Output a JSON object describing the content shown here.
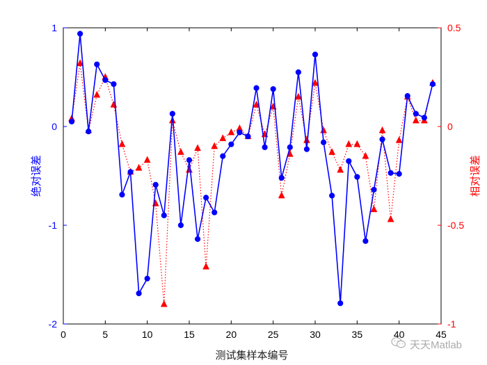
{
  "chart_data": {
    "type": "line",
    "xlabel": "测试集样本编号",
    "x": [
      1,
      2,
      3,
      4,
      5,
      6,
      7,
      8,
      9,
      10,
      11,
      12,
      13,
      14,
      15,
      16,
      17,
      18,
      19,
      20,
      21,
      22,
      23,
      24,
      25,
      26,
      27,
      28,
      29,
      30,
      31,
      32,
      33,
      34,
      35,
      36,
      37,
      38,
      39,
      40,
      41,
      42,
      43,
      44
    ],
    "xlim": [
      0,
      45
    ],
    "xticks": [
      "0",
      "5",
      "10",
      "15",
      "20",
      "25",
      "30",
      "35",
      "40",
      "45"
    ],
    "left_axis": {
      "label": "绝对误差",
      "color": "#0000ff",
      "ylim": [
        -2,
        1
      ],
      "ticks": [
        "-2",
        "-1",
        "0",
        "1"
      ]
    },
    "right_axis": {
      "label": "相对误差",
      "color": "#ff0000",
      "ylim": [
        -1,
        0.5
      ],
      "ticks": [
        "-1",
        "-0.5",
        "0",
        "0.5"
      ]
    },
    "series": [
      {
        "axis": "left",
        "color": "#0000ff",
        "line_style": "solid",
        "marker": "circle",
        "values": [
          0.05,
          0.94,
          -0.05,
          0.63,
          0.47,
          0.43,
          -0.69,
          -0.46,
          -1.69,
          -1.54,
          -0.59,
          -0.9,
          0.13,
          -1.0,
          -0.34,
          -1.14,
          -0.72,
          -0.87,
          -0.3,
          -0.18,
          -0.06,
          -0.1,
          0.39,
          -0.21,
          0.38,
          -0.52,
          -0.21,
          0.55,
          -0.23,
          0.73,
          -0.16,
          -0.7,
          -1.79,
          -0.35,
          -0.51,
          -1.16,
          -0.64,
          -0.13,
          -0.47,
          -0.48,
          0.31,
          0.13,
          0.09,
          0.43
        ]
      },
      {
        "axis": "right",
        "color": "#ff0000",
        "line_style": "dotted",
        "marker": "triangle",
        "values": [
          0.04,
          0.32,
          -0.02,
          0.16,
          0.25,
          0.11,
          -0.09,
          -0.23,
          -0.21,
          -0.17,
          -0.39,
          -0.9,
          0.03,
          -0.13,
          -0.22,
          -0.11,
          -0.71,
          -0.1,
          -0.06,
          -0.03,
          -0.01,
          -0.05,
          0.11,
          -0.04,
          0.1,
          -0.35,
          -0.14,
          0.15,
          -0.07,
          0.22,
          -0.02,
          -0.13,
          -0.22,
          -0.09,
          -0.09,
          -0.15,
          -0.42,
          -0.02,
          -0.47,
          -0.07,
          0.15,
          0.03,
          0.03,
          0.22
        ]
      }
    ]
  },
  "watermark": {
    "text": "天天Matlab",
    "icon": "wechat-icon"
  }
}
